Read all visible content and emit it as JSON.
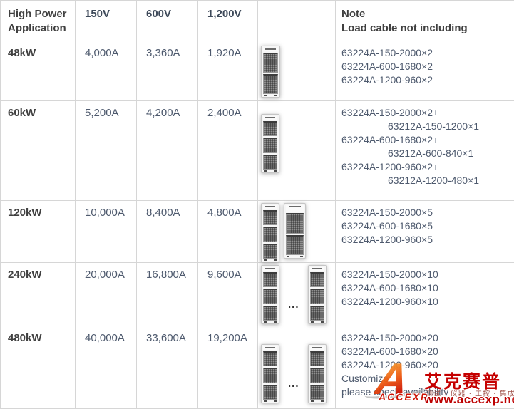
{
  "table": {
    "ellipsis": "...",
    "header": {
      "application": "High Power Application",
      "col_150v": "150V",
      "col_600v": "600V",
      "col_1200v": "1,200V",
      "note_title": "Note",
      "note_subtitle": "Load cable not including"
    },
    "rows": [
      {
        "power": "48kW",
        "current_150v": "4,000A",
        "current_600v": "3,360A",
        "current_1200v": "1,920A",
        "racks": [
          "tower2"
        ],
        "notes": [
          {
            "text": "63224A-150-2000×2",
            "indent": false
          },
          {
            "text": "63224A-600-1680×2",
            "indent": false
          },
          {
            "text": "63224A-1200-960×2",
            "indent": false
          }
        ]
      },
      {
        "power": "60kW",
        "current_150v": "5,200A",
        "current_600v": "4,200A",
        "current_1200v": "2,400A",
        "racks": [
          "tower3"
        ],
        "notes": [
          {
            "text": "63224A-150-2000×2+",
            "indent": false
          },
          {
            "text": "63212A-150-1200×1",
            "indent": true
          },
          {
            "text": "63224A-600-1680×2+",
            "indent": false
          },
          {
            "text": "63212A-600-840×1",
            "indent": true
          },
          {
            "text": "63224A-1200-960×2+",
            "indent": false
          },
          {
            "text": "63212A-1200-480×1",
            "indent": true
          }
        ]
      },
      {
        "power": "120kW",
        "current_150v": "10,000A",
        "current_600v": "8,400A",
        "current_1200v": "4,800A",
        "racks": [
          "tower3",
          "wide2"
        ],
        "notes": [
          {
            "text": "63224A-150-2000×5",
            "indent": false
          },
          {
            "text": "63224A-600-1680×5",
            "indent": false
          },
          {
            "text": "63224A-1200-960×5",
            "indent": false
          }
        ]
      },
      {
        "power": "240kW",
        "current_150v": "20,000A",
        "current_600v": "16,800A",
        "current_1200v": "9,600A",
        "racks": [
          "tower3",
          "dots",
          "tower3"
        ],
        "notes": [
          {
            "text": "63224A-150-2000×10",
            "indent": false
          },
          {
            "text": "63224A-600-1680×10",
            "indent": false
          },
          {
            "text": "63224A-1200-960×10",
            "indent": false
          }
        ]
      },
      {
        "power": "480kW",
        "current_150v": "40,000A",
        "current_600v": "33,600A",
        "current_1200v": "19,200A",
        "racks": [
          "tower3",
          "dots",
          "tower3"
        ],
        "notes": [
          {
            "text": "63224A-150-2000×20",
            "indent": false
          },
          {
            "text": "63224A-600-1680×20",
            "indent": false
          },
          {
            "text": "63224A-1200-960×20",
            "indent": false
          },
          {
            "text": "Customize",
            "indent": false
          },
          {
            "text": "please check availability",
            "indent": false
          }
        ]
      }
    ]
  },
  "watermark": {
    "logo_initial": "A",
    "logo_text": "ACCEXP",
    "brand": "艾克赛普",
    "tagline": "测试 · 仪器 · 工控 · 集成",
    "url": "www.accexp.net"
  }
}
